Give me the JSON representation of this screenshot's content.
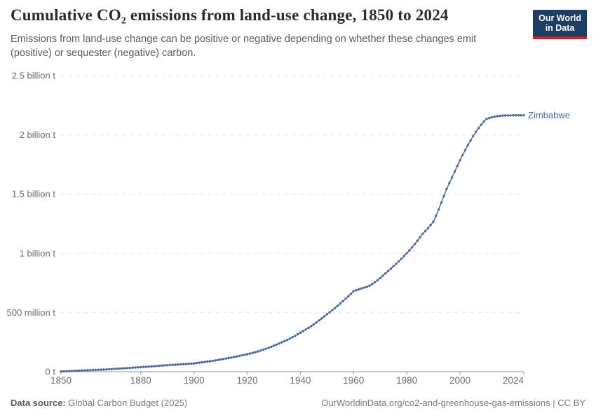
{
  "header": {
    "title": "Cumulative CO₂ emissions from land-use change, 1850 to 2024",
    "subtitle": "Emissions from land-use change can be positive or negative depending on whether these changes emit (positive) or sequester (negative) carbon.",
    "logo": {
      "line1": "Our World",
      "line2": "in Data",
      "bg_color": "#1d3d63",
      "accent_color": "#c0252e"
    }
  },
  "footer": {
    "source_label": "Data source:",
    "source_value": "Global Carbon Budget (2025)",
    "attribution": "OurWorldinData.org/co2-and-greenhouse-gas-emissions | CC BY"
  },
  "chart_data": {
    "type": "line",
    "title": "Cumulative CO₂ emissions from land-use change, 1850 to 2024",
    "unit": "tonnes of CO₂",
    "x_start": 1850,
    "x_end": 2024,
    "x_ticks": [
      1850,
      1880,
      1900,
      1920,
      1940,
      1960,
      1980,
      2000,
      2024
    ],
    "y_ticks": [
      {
        "v": 0,
        "label": "0 t"
      },
      {
        "v": 500,
        "label": "500 million t"
      },
      {
        "v": 1000,
        "label": "1 billion t"
      },
      {
        "v": 1500,
        "label": "1.5 billion t"
      },
      {
        "v": 2000,
        "label": "2 billion t"
      },
      {
        "v": 2500,
        "label": "2.5 billion t"
      }
    ],
    "ylim_million_t": [
      0,
      2500
    ],
    "grid": "horizontal-dashed",
    "legend": "end-of-line-label",
    "colors": {
      "line": "#4c6a9c",
      "grid": "#e5e5e5",
      "axis": "#999999",
      "tick_text": "#6e6e6e"
    },
    "series": [
      {
        "name": "Zimbabwe",
        "color": "#4c6a9c",
        "values_million_t": [
          2,
          3,
          4,
          5,
          6,
          7,
          8,
          9,
          10,
          11,
          12,
          13,
          14,
          15,
          16,
          17,
          18,
          19,
          21,
          22,
          24,
          25,
          26,
          28,
          29,
          31,
          32,
          34,
          35,
          37,
          38,
          40,
          41,
          43,
          45,
          46,
          48,
          50,
          52,
          53,
          55,
          56,
          58,
          59,
          61,
          62,
          64,
          65,
          67,
          68,
          70,
          73,
          76,
          79,
          82,
          85,
          88,
          91,
          95,
          99,
          103,
          107,
          111,
          115,
          119,
          124,
          128,
          133,
          138,
          143,
          148,
          153,
          159,
          165,
          171,
          178,
          185,
          193,
          201,
          210,
          220,
          229,
          238,
          248,
          258,
          268,
          279,
          291,
          303,
          316,
          330,
          343,
          356,
          370,
          384,
          399,
          415,
          432,
          449,
          467,
          485,
          502,
          520,
          538,
          557,
          576,
          596,
          616,
          637,
          658,
          680,
          688,
          696,
          703,
          710,
          717,
          725,
          740,
          756,
          772,
          790,
          810,
          830,
          850,
          870,
          890,
          911,
          932,
          954,
          977,
          1000,
          1025,
          1050,
          1077,
          1105,
          1134,
          1165,
          1188,
          1212,
          1238,
          1265,
          1315,
          1370,
          1428,
          1485,
          1543,
          1592,
          1640,
          1689,
          1737,
          1785,
          1830,
          1872,
          1913,
          1952,
          1990,
          2025,
          2056,
          2085,
          2111,
          2134,
          2142,
          2148,
          2153,
          2157,
          2160,
          2162,
          2163,
          2164,
          2164,
          2165,
          2165,
          2165,
          2165,
          2165
        ]
      }
    ]
  }
}
